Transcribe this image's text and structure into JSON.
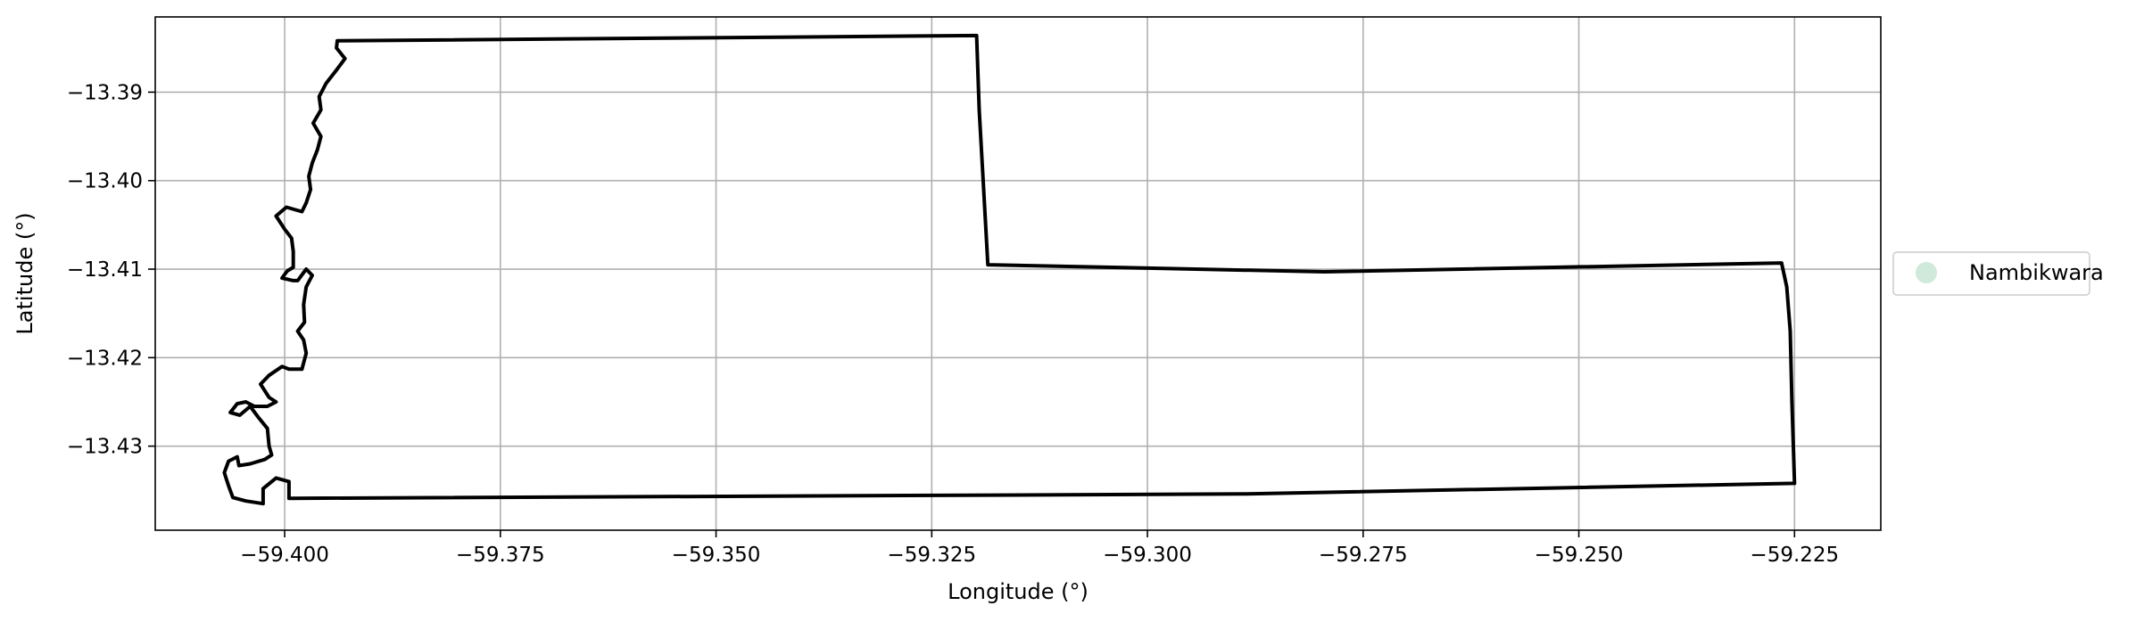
{
  "chart_data": {
    "type": "map",
    "title": "",
    "xlabel": "Longitude (°)",
    "ylabel": "Latitude (°)",
    "xlim": [
      -59.415,
      -59.215
    ],
    "ylim": [
      -13.4395,
      -13.3815
    ],
    "x_ticks": [
      -59.4,
      -59.375,
      -59.35,
      -59.325,
      -59.3,
      -59.275,
      -59.25,
      -59.225
    ],
    "x_tick_labels": [
      "−59.400",
      "−59.375",
      "−59.350",
      "−59.325",
      "−59.300",
      "−59.275",
      "−59.250",
      "−59.225"
    ],
    "y_ticks": [
      -13.39,
      -13.4,
      -13.41,
      -13.42,
      -13.43
    ],
    "y_tick_labels": [
      "−13.39",
      "−13.40",
      "−13.41",
      "−13.42",
      "−13.43"
    ],
    "grid": true,
    "legend": {
      "placement": "right",
      "entries": [
        {
          "label": "Nambikwara",
          "color": "#cfe9da"
        }
      ]
    },
    "series": [
      {
        "name": "Nambikwara",
        "color": "#cfe9da",
        "outline_color": "#000000",
        "boundary": [
          [
            -59.3939,
            -13.3842
          ],
          [
            -59.3198,
            -13.3836
          ],
          [
            -59.3195,
            -13.392
          ],
          [
            -59.3185,
            -13.4095
          ],
          [
            -59.2795,
            -13.4103
          ],
          [
            -59.2265,
            -13.4093
          ],
          [
            -59.2259,
            -13.412
          ],
          [
            -59.2255,
            -13.417
          ],
          [
            -59.2253,
            -13.425
          ],
          [
            -59.225,
            -13.4342
          ],
          [
            -59.289,
            -13.4354
          ],
          [
            -59.3995,
            -13.4359
          ],
          [
            -59.3995,
            -13.434
          ],
          [
            -59.401,
            -13.4336
          ],
          [
            -59.4025,
            -13.4348
          ],
          [
            -59.4025,
            -13.4365
          ],
          [
            -59.4045,
            -13.4362
          ],
          [
            -59.406,
            -13.4358
          ],
          [
            -59.4065,
            -13.4345
          ],
          [
            -59.407,
            -13.433
          ],
          [
            -59.4065,
            -13.4317
          ],
          [
            -59.4055,
            -13.4312
          ],
          [
            -59.4053,
            -13.4322
          ],
          [
            -59.404,
            -13.432
          ],
          [
            -59.4023,
            -13.4315
          ],
          [
            -59.4015,
            -13.431
          ],
          [
            -59.4018,
            -13.43
          ],
          [
            -59.402,
            -13.428
          ],
          [
            -59.403,
            -13.4268
          ],
          [
            -59.404,
            -13.4255
          ],
          [
            -59.4052,
            -13.4265
          ],
          [
            -59.4063,
            -13.4262
          ],
          [
            -59.4055,
            -13.4252
          ],
          [
            -59.4045,
            -13.425
          ],
          [
            -59.4035,
            -13.4255
          ],
          [
            -59.402,
            -13.4255
          ],
          [
            -59.401,
            -13.425
          ],
          [
            -59.4018,
            -13.4245
          ],
          [
            -59.4028,
            -13.423
          ],
          [
            -59.4018,
            -13.422
          ],
          [
            -59.4003,
            -13.421
          ],
          [
            -59.3995,
            -13.4213
          ],
          [
            -59.398,
            -13.4213
          ],
          [
            -59.3975,
            -13.4195
          ],
          [
            -59.3978,
            -13.418
          ],
          [
            -59.3985,
            -13.417
          ],
          [
            -59.3977,
            -13.416
          ],
          [
            -59.3978,
            -13.414
          ],
          [
            -59.3975,
            -13.412
          ],
          [
            -59.3968,
            -13.4107
          ],
          [
            -59.3975,
            -13.41
          ],
          [
            -59.3985,
            -13.4113
          ],
          [
            -59.399,
            -13.4113
          ],
          [
            -59.4003,
            -13.411
          ],
          [
            -59.3997,
            -13.4102
          ],
          [
            -59.399,
            -13.4098
          ],
          [
            -59.399,
            -13.408
          ],
          [
            -59.3992,
            -13.4065
          ],
          [
            -59.4,
            -13.4055
          ],
          [
            -59.401,
            -13.404
          ],
          [
            -59.3998,
            -13.403
          ],
          [
            -59.398,
            -13.4035
          ],
          [
            -59.3975,
            -13.4025
          ],
          [
            -59.397,
            -13.401
          ],
          [
            -59.3972,
            -13.3995
          ],
          [
            -59.3968,
            -13.398
          ],
          [
            -59.3962,
            -13.3965
          ],
          [
            -59.3958,
            -13.395
          ],
          [
            -59.3967,
            -13.3935
          ],
          [
            -59.3958,
            -13.392
          ],
          [
            -59.396,
            -13.3905
          ],
          [
            -59.3952,
            -13.389
          ],
          [
            -59.394,
            -13.3875
          ],
          [
            -59.393,
            -13.3862
          ],
          [
            -59.394,
            -13.385
          ],
          [
            -59.3939,
            -13.3842
          ]
        ]
      }
    ]
  }
}
